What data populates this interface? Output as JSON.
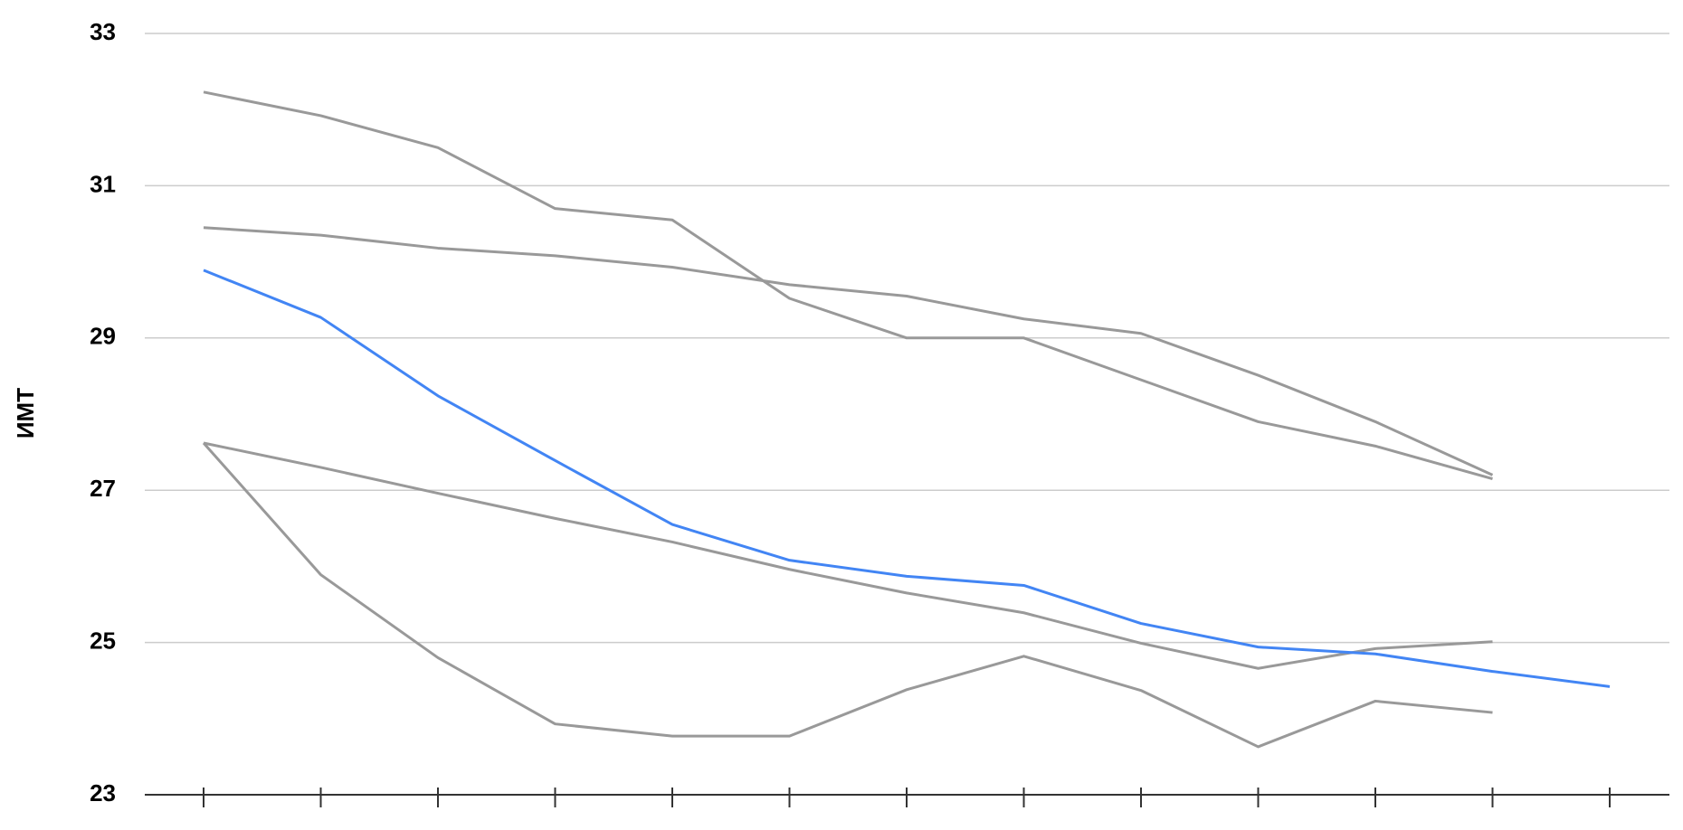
{
  "chart_data": {
    "type": "line",
    "y_label": "ИМТ",
    "categories": [
      null,
      null,
      null,
      null,
      null,
      null,
      null,
      null,
      null,
      null,
      null,
      null,
      null
    ],
    "series": [
      {
        "color": "#999999",
        "values": [
          32.23,
          31.92,
          31.5,
          30.7,
          30.55,
          29.52,
          29.0,
          29.0,
          28.45,
          27.9,
          27.58,
          27.15,
          null
        ]
      },
      {
        "color": "#999999",
        "values": [
          30.45,
          30.35,
          30.18,
          30.08,
          29.93,
          29.7,
          29.55,
          29.25,
          29.06,
          28.51,
          27.9,
          27.2,
          null
        ]
      },
      {
        "color": "#999999",
        "values": [
          27.62,
          27.3,
          26.96,
          26.63,
          26.32,
          25.96,
          25.65,
          25.39,
          24.99,
          24.66,
          24.92,
          25.01,
          null
        ]
      },
      {
        "color": "#999999",
        "values": [
          27.62,
          25.89,
          24.8,
          23.93,
          23.77,
          23.77,
          24.38,
          24.82,
          24.37,
          23.63,
          24.23,
          24.08,
          null
        ]
      },
      {
        "color": "#4285f4",
        "values": [
          29.89,
          29.27,
          28.24,
          27.39,
          26.55,
          26.08,
          25.87,
          25.75,
          25.25,
          24.94,
          24.85,
          24.62,
          24.42
        ]
      }
    ],
    "ylim": [
      23,
      33
    ],
    "yticks": [
      23,
      25,
      27,
      29,
      31,
      33
    ],
    "grid": true
  }
}
